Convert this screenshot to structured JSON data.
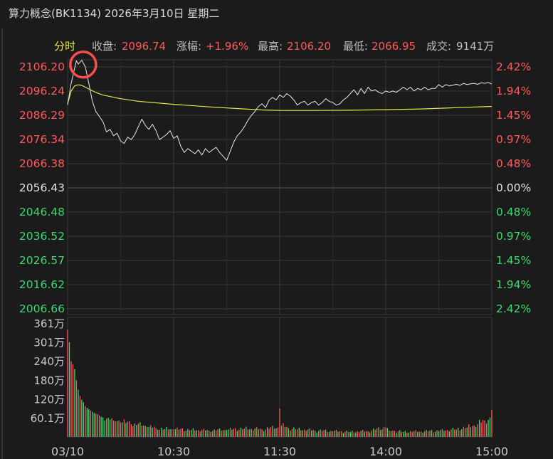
{
  "header": {
    "title": "算力概念(BK1134) 2026年3月10日 星期二"
  },
  "info_bar": {
    "tab_label": "分时",
    "close_label": "收盘:",
    "close_value": "2096.74",
    "change_label": "涨幅:",
    "change_value": "+1.96%",
    "high_label": "最高:",
    "high_value": "2106.20",
    "low_label": "最低:",
    "low_value": "2066.95",
    "volume_label": "成交:",
    "volume_value": "9141万"
  },
  "colors": {
    "background": "#1b1b1b",
    "grid": "#3a3a3a",
    "up": "#ff5b5b",
    "down": "#3ed86e",
    "neutral": "#e0e0e0",
    "price_line": "#e8e8e8",
    "avg_line": "#e6e64a",
    "marker": "#ff4d4d",
    "axis_text": "#c8c8c8"
  },
  "chart_data": {
    "type": "line",
    "title": "",
    "x_tick_labels": [
      "03/10",
      "10:30",
      "11:30",
      "14:00",
      "15:00"
    ],
    "price_axis_labels": [
      "2106.20",
      "2096.24",
      "2086.29",
      "2076.34",
      "2066.38",
      "2056.43",
      "2046.48",
      "2036.52",
      "2026.57",
      "2016.62",
      "2006.66"
    ],
    "pct_axis_labels": [
      "2.42%",
      "1.94%",
      "1.45%",
      "0.97%",
      "0.48%",
      "0.00%",
      "0.48%",
      "0.97%",
      "1.45%",
      "1.94%",
      "2.42%"
    ],
    "price_range": [
      2006.66,
      2106.2
    ],
    "prev_close": 2056.43,
    "minutes_total": 240,
    "price_series": {
      "t": [
        0,
        2,
        4,
        5,
        6,
        8,
        10,
        12,
        14,
        16,
        18,
        20,
        22,
        24,
        26,
        28,
        30,
        32,
        34,
        36,
        38,
        40,
        42,
        44,
        46,
        48,
        50,
        52,
        54,
        56,
        58,
        60,
        62,
        64,
        66,
        68,
        70,
        72,
        74,
        76,
        78,
        80,
        82,
        84,
        86,
        88,
        90,
        92,
        94,
        96,
        98,
        100,
        102,
        104,
        106,
        108,
        110,
        112,
        114,
        116,
        118,
        120,
        122,
        124,
        126,
        128,
        130,
        132,
        134,
        136,
        138,
        140,
        142,
        144,
        146,
        148,
        150,
        152,
        154,
        156,
        158,
        160,
        162,
        164,
        166,
        168,
        170,
        172,
        174,
        176,
        178,
        180,
        182,
        184,
        186,
        188,
        190,
        192,
        194,
        196,
        198,
        200,
        202,
        204,
        206,
        208,
        210,
        212,
        214,
        216,
        218,
        220,
        222,
        224,
        226,
        228,
        230,
        232,
        234,
        236,
        238,
        240
      ],
      "v": [
        2088.5,
        2097.0,
        2103.0,
        2105.8,
        2104.5,
        2106.0,
        2103.5,
        2097.0,
        2090.0,
        2086.0,
        2084.0,
        2082.0,
        2078.0,
        2079.0,
        2076.5,
        2077.5,
        2074.5,
        2073.5,
        2076.0,
        2075.0,
        2077.0,
        2080.0,
        2083.0,
        2080.5,
        2079.0,
        2081.0,
        2078.5,
        2075.0,
        2076.0,
        2077.0,
        2078.5,
        2075.5,
        2076.5,
        2072.5,
        2070.0,
        2071.5,
        2070.5,
        2069.5,
        2071.0,
        2069.0,
        2071.5,
        2070.0,
        2071.0,
        2072.0,
        2070.0,
        2068.5,
        2066.9,
        2070.5,
        2074.0,
        2076.5,
        2078.0,
        2080.0,
        2082.5,
        2084.5,
        2086.0,
        2088.0,
        2089.0,
        2087.5,
        2090.5,
        2091.5,
        2090.5,
        2092.5,
        2091.5,
        2093.0,
        2092.0,
        2090.5,
        2088.5,
        2089.5,
        2090.0,
        2088.5,
        2089.5,
        2090.0,
        2088.5,
        2089.5,
        2091.0,
        2090.0,
        2089.5,
        2088.5,
        2089.0,
        2090.5,
        2091.5,
        2093.0,
        2094.5,
        2092.5,
        2095.0,
        2093.0,
        2095.5,
        2094.0,
        2094.5,
        2093.5,
        2093.0,
        2094.0,
        2093.5,
        2094.0,
        2093.5,
        2094.5,
        2095.5,
        2094.5,
        2095.5,
        2094.0,
        2095.0,
        2094.5,
        2095.5,
        2094.5,
        2095.0,
        2095.0,
        2096.5,
        2095.5,
        2096.5,
        2096.0,
        2096.3,
        2096.6,
        2096.2,
        2097.0,
        2096.5,
        2096.8,
        2097.0,
        2096.6,
        2097.2,
        2097.0,
        2097.3,
        2096.74
      ]
    },
    "avg_series": {
      "t": [
        0,
        2,
        4,
        6,
        8,
        10,
        12,
        16,
        20,
        30,
        40,
        60,
        80,
        100,
        110,
        120,
        140,
        160,
        180,
        200,
        220,
        240
      ],
      "v": [
        2089.0,
        2094.0,
        2096.0,
        2096.4,
        2096.2,
        2095.5,
        2094.8,
        2093.4,
        2092.4,
        2091.0,
        2090.0,
        2088.8,
        2087.8,
        2087.0,
        2086.6,
        2086.4,
        2086.4,
        2086.5,
        2086.7,
        2087.0,
        2087.5,
        2088.0
      ]
    },
    "volume_axis_labels": [
      "361万",
      "301万",
      "240万",
      "180万",
      "120万",
      "60.1万"
    ],
    "volume_max": 361,
    "volume_unit": "万",
    "volume_samples": [
      {
        "t": 0,
        "v": 340,
        "up": true
      },
      {
        "t": 1,
        "v": 300,
        "up": false
      },
      {
        "t": 2,
        "v": 240,
        "up": true
      },
      {
        "t": 3,
        "v": 230,
        "up": true
      },
      {
        "t": 4,
        "v": 215,
        "up": false
      },
      {
        "t": 5,
        "v": 180,
        "up": true
      },
      {
        "t": 6,
        "v": 150,
        "up": false
      },
      {
        "t": 7,
        "v": 130,
        "up": true
      },
      {
        "t": 8,
        "v": 118,
        "up": false
      },
      {
        "t": 9,
        "v": 110,
        "up": false
      },
      {
        "t": 10,
        "v": 98,
        "up": true
      },
      {
        "t": 11,
        "v": 92,
        "up": false
      },
      {
        "t": 12,
        "v": 88,
        "up": false
      },
      {
        "t": 13,
        "v": 84,
        "up": true
      },
      {
        "t": 14,
        "v": 80,
        "up": false
      },
      {
        "t": 15,
        "v": 76,
        "up": false
      },
      {
        "t": 16,
        "v": 74,
        "up": true
      },
      {
        "t": 17,
        "v": 72,
        "up": false
      },
      {
        "t": 18,
        "v": 68,
        "up": true
      },
      {
        "t": 19,
        "v": 64,
        "up": false
      },
      {
        "t": 20,
        "v": 62,
        "up": false
      },
      {
        "t": 22,
        "v": 58,
        "up": true
      },
      {
        "t": 24,
        "v": 55,
        "up": false
      },
      {
        "t": 26,
        "v": 52,
        "up": true
      },
      {
        "t": 28,
        "v": 50,
        "up": false
      },
      {
        "t": 30,
        "v": 46,
        "up": true
      },
      {
        "t": 33,
        "v": 44,
        "up": false
      },
      {
        "t": 36,
        "v": 40,
        "up": true
      },
      {
        "t": 39,
        "v": 38,
        "up": false
      },
      {
        "t": 42,
        "v": 36,
        "up": true
      },
      {
        "t": 45,
        "v": 32,
        "up": false
      },
      {
        "t": 50,
        "v": 28,
        "up": true
      },
      {
        "t": 55,
        "v": 25,
        "up": false
      },
      {
        "t": 60,
        "v": 24,
        "up": true
      },
      {
        "t": 70,
        "v": 22,
        "up": false
      },
      {
        "t": 80,
        "v": 20,
        "up": true
      },
      {
        "t": 90,
        "v": 22,
        "up": false
      },
      {
        "t": 100,
        "v": 26,
        "up": true
      },
      {
        "t": 110,
        "v": 24,
        "up": true
      },
      {
        "t": 119,
        "v": 30,
        "up": true
      },
      {
        "t": 120,
        "v": 90,
        "up": true
      },
      {
        "t": 121,
        "v": 36,
        "up": true
      },
      {
        "t": 125,
        "v": 28,
        "up": false
      },
      {
        "t": 130,
        "v": 24,
        "up": true
      },
      {
        "t": 140,
        "v": 20,
        "up": false
      },
      {
        "t": 150,
        "v": 18,
        "up": true
      },
      {
        "t": 160,
        "v": 16,
        "up": false
      },
      {
        "t": 170,
        "v": 18,
        "up": true
      },
      {
        "t": 180,
        "v": 30,
        "up": true
      },
      {
        "t": 182,
        "v": 20,
        "up": true
      },
      {
        "t": 190,
        "v": 16,
        "up": false
      },
      {
        "t": 200,
        "v": 17,
        "up": true
      },
      {
        "t": 210,
        "v": 19,
        "up": false
      },
      {
        "t": 220,
        "v": 24,
        "up": true
      },
      {
        "t": 226,
        "v": 30,
        "up": false
      },
      {
        "t": 232,
        "v": 40,
        "up": true
      },
      {
        "t": 236,
        "v": 52,
        "up": true
      },
      {
        "t": 239,
        "v": 62,
        "up": false
      },
      {
        "t": 240,
        "v": 86,
        "up": true
      }
    ],
    "highlight_marker": "high-point-circle"
  }
}
